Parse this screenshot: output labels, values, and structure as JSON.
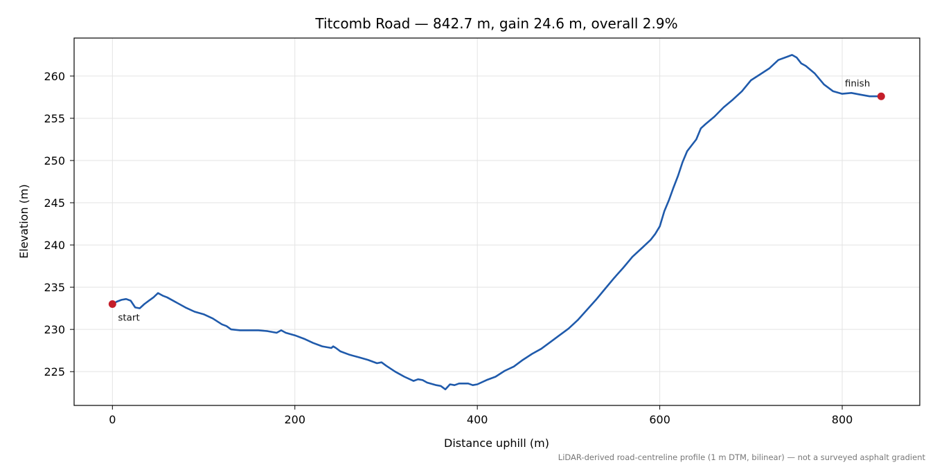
{
  "chart_data": {
    "type": "line",
    "title": "Titcomb Road — 842.7 m, gain 24.6 m, overall 2.9%",
    "xlabel": "Distance uphill (m)",
    "ylabel": "Elevation (m)",
    "xlim": [
      -42,
      885
    ],
    "ylim": [
      221.0,
      264.5
    ],
    "xticks": [
      0,
      200,
      400,
      600,
      800
    ],
    "yticks": [
      225,
      230,
      235,
      240,
      245,
      250,
      255,
      260
    ],
    "grid": true,
    "line_color": "#1f5aab",
    "marker_color": "#c41e2a",
    "series": [
      {
        "x": [
          0,
          5,
          10,
          15,
          20,
          25,
          30,
          35,
          40,
          45,
          50,
          55,
          60,
          70,
          80,
          90,
          100,
          110,
          120,
          125,
          130,
          140,
          150,
          160,
          170,
          180,
          185,
          190,
          200,
          210,
          220,
          230,
          240,
          242,
          245,
          250,
          260,
          270,
          280,
          290,
          295,
          300,
          310,
          320,
          330,
          335,
          340,
          345,
          355,
          360,
          365,
          370,
          375,
          380,
          390,
          395,
          400,
          410,
          420,
          430,
          440,
          450,
          460,
          470,
          480,
          490,
          500,
          510,
          520,
          530,
          540,
          550,
          560,
          570,
          580,
          590,
          595,
          600,
          605,
          610,
          615,
          620,
          625,
          630,
          635,
          640,
          645,
          650,
          660,
          670,
          680,
          690,
          700,
          710,
          720,
          730,
          740,
          745,
          750,
          755,
          760,
          770,
          780,
          790,
          800,
          810,
          820,
          830,
          842.7
        ],
        "y": [
          233.0,
          233.3,
          233.5,
          233.6,
          233.4,
          232.6,
          232.5,
          233.0,
          233.4,
          233.8,
          234.3,
          234.0,
          233.8,
          233.2,
          232.6,
          232.1,
          231.8,
          231.3,
          230.6,
          230.4,
          230.0,
          229.9,
          229.9,
          229.9,
          229.8,
          229.6,
          229.9,
          229.6,
          229.3,
          228.9,
          228.4,
          228.0,
          227.8,
          228.0,
          227.8,
          227.4,
          227.0,
          226.7,
          226.4,
          226.0,
          226.1,
          225.7,
          225.0,
          224.4,
          223.9,
          224.1,
          224.0,
          223.7,
          223.4,
          223.3,
          222.9,
          223.5,
          223.4,
          223.6,
          223.6,
          223.4,
          223.5,
          224.0,
          224.4,
          225.1,
          225.6,
          226.4,
          227.1,
          227.7,
          228.5,
          229.3,
          230.1,
          231.1,
          232.3,
          233.5,
          234.8,
          236.1,
          237.3,
          238.6,
          239.6,
          240.6,
          241.3,
          242.2,
          244.0,
          245.3,
          246.8,
          248.2,
          249.8,
          251.1,
          251.8,
          252.5,
          253.8,
          254.3,
          255.2,
          256.3,
          257.2,
          258.2,
          259.5,
          260.2,
          260.9,
          261.9,
          262.3,
          262.5,
          262.2,
          261.5,
          261.2,
          260.3,
          259.0,
          258.2,
          257.9,
          258.0,
          257.8,
          257.6,
          257.6
        ]
      }
    ],
    "annotations": [
      {
        "text": "start",
        "x": 0,
        "y": 233.0
      },
      {
        "text": "finish",
        "x": 842.7,
        "y": 257.6
      }
    ],
    "footnote": "LiDAR-derived road-centreline profile (1 m DTM, bilinear) — not a surveyed asphalt gradient"
  }
}
